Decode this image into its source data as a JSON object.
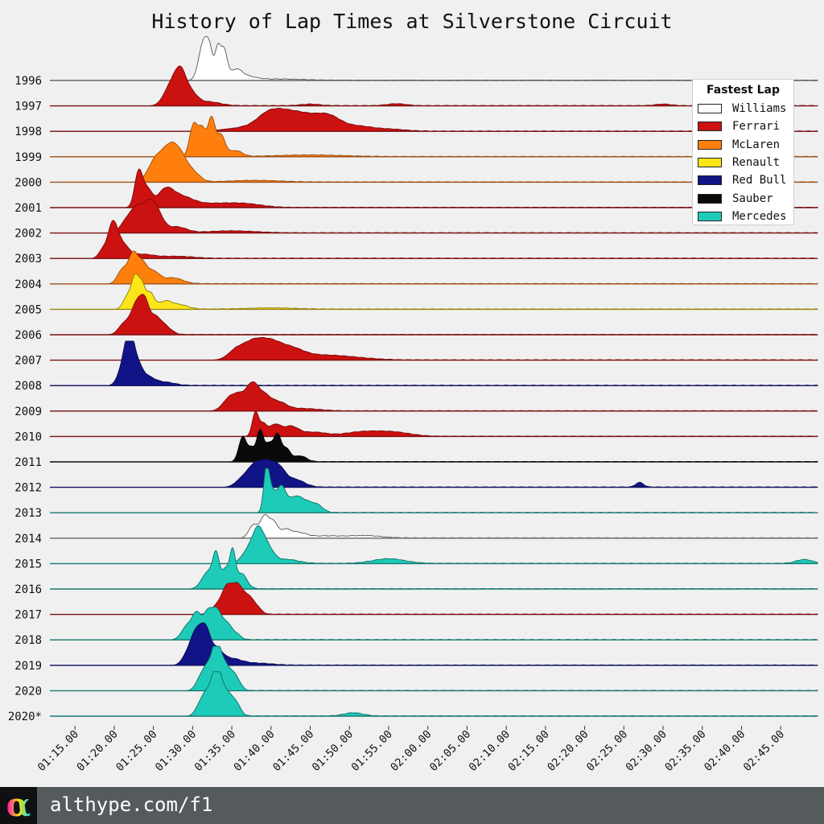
{
  "chart_data": {
    "type": "area",
    "title": "History of Lap Times at Silverstone Circuit",
    "x_ticks": [
      "01:15.00",
      "01:20.00",
      "01:25.00",
      "01:30.00",
      "01:35.00",
      "01:40.00",
      "01:45.00",
      "01:50.00",
      "01:55.00",
      "02:00.00",
      "02:05.00",
      "02:10.00",
      "02:15.00",
      "02:20.00",
      "02:25.00",
      "02:30.00",
      "02:35.00",
      "02:40.00",
      "02:45.00"
    ],
    "x_tick_seconds": [
      75,
      80,
      85,
      90,
      95,
      100,
      105,
      110,
      115,
      120,
      125,
      130,
      135,
      140,
      145,
      150,
      155,
      160,
      165
    ],
    "xlim": [
      71.8,
      169.7
    ],
    "legend": {
      "title": "Fastest Lap",
      "placement": "top-right",
      "items": [
        {
          "team": "Williams",
          "color": "#ffffff"
        },
        {
          "team": "Ferrari",
          "color": "#cc1111"
        },
        {
          "team": "McLaren",
          "color": "#ff7f0e"
        },
        {
          "team": "Renault",
          "color": "#fce61a"
        },
        {
          "team": "Red Bull",
          "color": "#101486"
        },
        {
          "team": "Sauber",
          "color": "#0a0a0a"
        },
        {
          "team": "Mercedes",
          "color": "#1dcbb8"
        }
      ]
    },
    "series": [
      {
        "year": "1996",
        "team": "Williams",
        "peaks": [
          [
            91.4,
            0.6,
            1.0
          ],
          [
            92.2,
            0.4,
            0.55
          ],
          [
            93.2,
            0.35,
            0.8
          ],
          [
            94.0,
            0.4,
            0.75
          ],
          [
            95.5,
            0.8,
            0.25
          ],
          [
            97.0,
            1.2,
            0.08
          ],
          [
            101,
            3,
            0.03
          ]
        ]
      },
      {
        "year": "1997",
        "team": "Ferrari",
        "peaks": [
          [
            87.3,
            0.9,
            0.55
          ],
          [
            88.5,
            0.7,
            0.7
          ],
          [
            89.8,
            0.8,
            0.3
          ],
          [
            92.0,
            1.5,
            0.1
          ],
          [
            105,
            1.2,
            0.04
          ],
          [
            116,
            1.2,
            0.05
          ],
          [
            150,
            1.0,
            0.04
          ]
        ]
      },
      {
        "year": "1998",
        "team": "Ferrari",
        "peaks": [
          [
            95.8,
            2.0,
            0.08
          ],
          [
            99.4,
            1.5,
            0.3
          ],
          [
            101.5,
            1.8,
            0.35
          ],
          [
            104.5,
            2.0,
            0.35
          ],
          [
            107.5,
            1.5,
            0.3
          ],
          [
            111,
            1.8,
            0.12
          ],
          [
            115,
            2,
            0.05
          ]
        ]
      },
      {
        "year": "1999",
        "team": "McLaren",
        "peaks": [
          [
            90.1,
            0.5,
            0.8
          ],
          [
            91.2,
            0.5,
            0.7
          ],
          [
            92.4,
            0.45,
            0.95
          ],
          [
            93.6,
            0.55,
            0.55
          ],
          [
            95.5,
            0.8,
            0.15
          ],
          [
            105,
            4,
            0.04
          ]
        ]
      },
      {
        "year": "2000",
        "team": "McLaren",
        "peaks": [
          [
            84.8,
            0.8,
            0.3
          ],
          [
            86.0,
            0.9,
            0.55
          ],
          [
            87.3,
            0.8,
            0.65
          ],
          [
            88.5,
            0.8,
            0.55
          ],
          [
            90.0,
            0.9,
            0.25
          ],
          [
            98,
            3,
            0.04
          ]
        ]
      },
      {
        "year": "2001",
        "team": "Ferrari",
        "peaks": [
          [
            83.1,
            0.5,
            0.9
          ],
          [
            84.2,
            0.6,
            0.45
          ],
          [
            86.5,
            1.0,
            0.4
          ],
          [
            88.5,
            1.5,
            0.25
          ],
          [
            93,
            3,
            0.1
          ],
          [
            97,
            2,
            0.06
          ]
        ]
      },
      {
        "year": "2002",
        "team": "Ferrari",
        "peaks": [
          [
            81.5,
            0.7,
            0.3
          ],
          [
            82.8,
            0.7,
            0.55
          ],
          [
            84.3,
            0.8,
            0.65
          ],
          [
            85.5,
            0.8,
            0.45
          ],
          [
            88.0,
            1.2,
            0.15
          ],
          [
            95,
            3,
            0.05
          ]
        ]
      },
      {
        "year": "2003",
        "team": "Ferrari",
        "peaks": [
          [
            78.5,
            0.5,
            0.2
          ],
          [
            79.8,
            0.6,
            0.85
          ],
          [
            81.0,
            0.8,
            0.35
          ],
          [
            83.5,
            1.5,
            0.1
          ],
          [
            88,
            2,
            0.05
          ]
        ]
      },
      {
        "year": "2004",
        "team": "McLaren",
        "peaks": [
          [
            81.0,
            0.6,
            0.35
          ],
          [
            82.4,
            0.6,
            0.75
          ],
          [
            83.6,
            0.6,
            0.45
          ],
          [
            85.0,
            0.8,
            0.3
          ],
          [
            87.5,
            1.2,
            0.15
          ]
        ]
      },
      {
        "year": "2005",
        "team": "Renault",
        "peaks": [
          [
            81.6,
            0.5,
            0.3
          ],
          [
            82.7,
            0.5,
            0.85
          ],
          [
            83.6,
            0.4,
            0.5
          ],
          [
            84.6,
            0.5,
            0.4
          ],
          [
            86.5,
            0.9,
            0.2
          ],
          [
            88.5,
            1.0,
            0.1
          ],
          [
            100,
            3,
            0.03
          ]
        ]
      },
      {
        "year": "2006",
        "team": "Ferrari",
        "peaks": [
          [
            81.3,
            0.7,
            0.3
          ],
          [
            82.7,
            0.6,
            0.65
          ],
          [
            83.8,
            0.6,
            0.85
          ],
          [
            85.2,
            0.7,
            0.4
          ],
          [
            86.5,
            0.8,
            0.2
          ]
        ]
      },
      {
        "year": "2007",
        "team": "Ferrari",
        "peaks": [
          [
            95.4,
            1.0,
            0.2
          ],
          [
            97.5,
            1.3,
            0.4
          ],
          [
            99.8,
            1.4,
            0.4
          ],
          [
            102.5,
            1.6,
            0.25
          ],
          [
            106,
            3,
            0.1
          ],
          [
            110,
            3,
            0.05
          ]
        ]
      },
      {
        "year": "2008",
        "team": "Red Bull",
        "peaks": [
          [
            81.0,
            0.6,
            0.4
          ],
          [
            81.9,
            0.55,
            1.1
          ],
          [
            82.8,
            0.7,
            0.55
          ],
          [
            84.3,
            0.9,
            0.2
          ],
          [
            86.5,
            1.2,
            0.08
          ]
        ]
      },
      {
        "year": "2009",
        "team": "Ferrari",
        "peaks": [
          [
            94.5,
            0.8,
            0.25
          ],
          [
            96.0,
            0.9,
            0.4
          ],
          [
            97.6,
            0.7,
            0.55
          ],
          [
            99.0,
            0.9,
            0.4
          ],
          [
            101.0,
            1.0,
            0.2
          ],
          [
            104,
            2,
            0.06
          ]
        ]
      },
      {
        "year": "2010",
        "team": "Ferrari",
        "peaks": [
          [
            98.0,
            0.4,
            0.6
          ],
          [
            99.0,
            0.5,
            0.3
          ],
          [
            100.5,
            0.7,
            0.28
          ],
          [
            102.5,
            1.0,
            0.25
          ],
          [
            105.5,
            1.5,
            0.1
          ],
          [
            112,
            2.5,
            0.12
          ],
          [
            116,
            2,
            0.08
          ]
        ]
      },
      {
        "year": "2011",
        "team": "Sauber",
        "peaks": [
          [
            96.4,
            0.5,
            0.65
          ],
          [
            97.5,
            0.4,
            0.3
          ],
          [
            98.6,
            0.45,
            0.8
          ],
          [
            99.7,
            0.45,
            0.4
          ],
          [
            100.8,
            0.5,
            0.7
          ],
          [
            102.0,
            0.5,
            0.3
          ],
          [
            103.7,
            0.8,
            0.15
          ]
        ]
      },
      {
        "year": "2012",
        "team": "Red Bull",
        "peaks": [
          [
            96.5,
            0.9,
            0.25
          ],
          [
            98.0,
            0.8,
            0.5
          ],
          [
            99.5,
            0.8,
            0.55
          ],
          [
            101.0,
            0.8,
            0.45
          ],
          [
            103.0,
            1.2,
            0.2
          ],
          [
            147.0,
            0.5,
            0.12
          ]
        ]
      },
      {
        "year": "2013",
        "team": "Mercedes",
        "peaks": [
          [
            99.4,
            0.35,
            1.0
          ],
          [
            100.0,
            0.5,
            0.5
          ],
          [
            101.3,
            0.6,
            0.65
          ],
          [
            103.0,
            0.8,
            0.35
          ],
          [
            104.5,
            0.9,
            0.25
          ],
          [
            106.0,
            0.7,
            0.15
          ]
        ]
      },
      {
        "year": "2014",
        "team": "Williams",
        "peaks": [
          [
            97.8,
            0.6,
            0.35
          ],
          [
            99.2,
            0.5,
            0.55
          ],
          [
            100.3,
            0.5,
            0.4
          ],
          [
            101.8,
            0.7,
            0.2
          ],
          [
            103.5,
            1.0,
            0.13
          ],
          [
            107,
            2,
            0.05
          ],
          [
            112,
            2,
            0.06
          ]
        ]
      },
      {
        "year": "2015",
        "team": "Mercedes",
        "peaks": [
          [
            97.0,
            0.8,
            0.3
          ],
          [
            98.3,
            0.7,
            0.75
          ],
          [
            99.5,
            0.8,
            0.4
          ],
          [
            102,
            1.5,
            0.1
          ],
          [
            115,
            2,
            0.12
          ],
          [
            168,
            1,
            0.1
          ]
        ]
      },
      {
        "year": "2016",
        "team": "Mercedes",
        "peaks": [
          [
            92.0,
            0.8,
            0.45
          ],
          [
            93.0,
            0.4,
            0.75
          ],
          [
            94.2,
            0.5,
            0.5
          ],
          [
            95.1,
            0.35,
            0.85
          ],
          [
            96.2,
            0.7,
            0.4
          ]
        ]
      },
      {
        "year": "2017",
        "team": "Ferrari",
        "peaks": [
          [
            93.5,
            0.9,
            0.3
          ],
          [
            94.5,
            0.6,
            0.55
          ],
          [
            95.7,
            0.6,
            0.65
          ],
          [
            97.0,
            0.7,
            0.45
          ],
          [
            98.2,
            0.6,
            0.15
          ]
        ]
      },
      {
        "year": "2018",
        "team": "Mercedes",
        "peaks": [
          [
            89.3,
            0.7,
            0.35
          ],
          [
            90.6,
            0.6,
            0.65
          ],
          [
            91.9,
            0.5,
            0.6
          ],
          [
            93.0,
            0.6,
            0.75
          ],
          [
            94.3,
            0.6,
            0.4
          ],
          [
            95.5,
            0.6,
            0.15
          ]
        ]
      },
      {
        "year": "2019",
        "team": "Red Bull",
        "peaks": [
          [
            89.5,
            0.7,
            0.35
          ],
          [
            90.5,
            0.6,
            0.7
          ],
          [
            91.6,
            0.6,
            0.85
          ],
          [
            93.0,
            0.8,
            0.4
          ],
          [
            95,
            1.2,
            0.15
          ],
          [
            98,
            2,
            0.05
          ]
        ]
      },
      {
        "year": "2020",
        "team": "Mercedes",
        "peaks": [
          [
            91.0,
            0.6,
            0.3
          ],
          [
            92.0,
            0.6,
            0.55
          ],
          [
            93.0,
            0.5,
            0.9
          ],
          [
            94.0,
            0.8,
            0.7
          ],
          [
            95.5,
            0.6,
            0.3
          ]
        ]
      },
      {
        "year": "2020*",
        "team": "Mercedes",
        "peaks": [
          [
            91.0,
            0.6,
            0.3
          ],
          [
            92.0,
            0.6,
            0.55
          ],
          [
            93.0,
            0.5,
            0.9
          ],
          [
            94.0,
            0.8,
            0.7
          ],
          [
            95.5,
            0.6,
            0.3
          ],
          [
            110.5,
            1.2,
            0.08
          ]
        ]
      }
    ]
  },
  "footer": {
    "logo_glyph": "α",
    "url": "althype.com/f1"
  }
}
